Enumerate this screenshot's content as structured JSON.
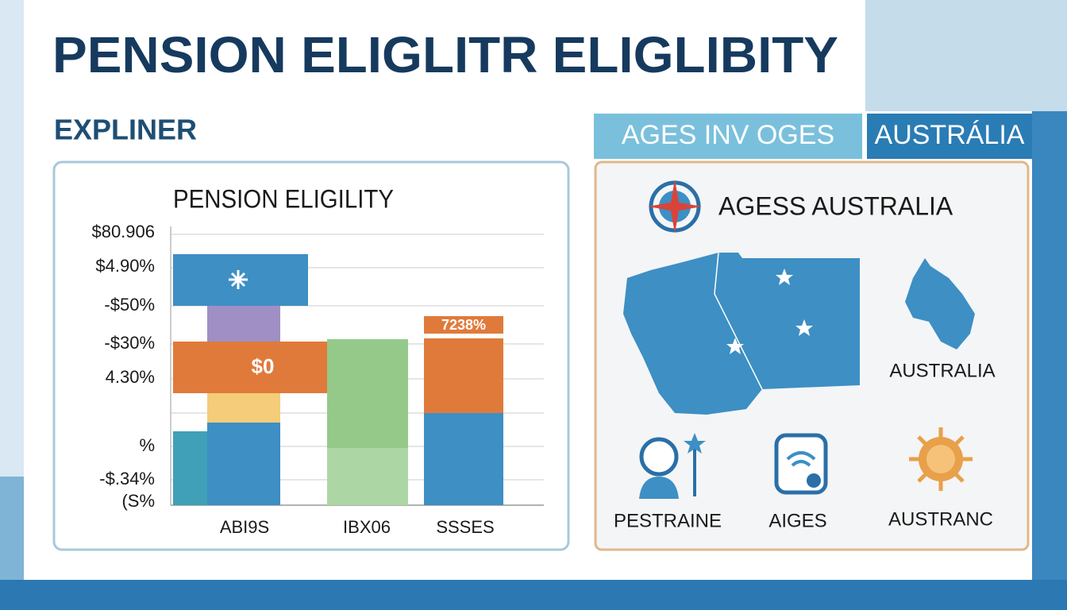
{
  "header": {
    "title": "PENSION ELIGLITR ELIGLIBITY",
    "subtitle": "EXPLINER"
  },
  "chart": {
    "title": "PENSION ELIGILITY",
    "axis_labels": [
      "$80.906",
      "$4.90%",
      "-$50%",
      "-$30%",
      "4.30%",
      "%",
      "-$.34%",
      "(S%"
    ],
    "bar_labels": [
      "$0",
      "7238%"
    ],
    "categories": [
      "ABI9S",
      "IBX06",
      "SSSES"
    ]
  },
  "tabs": [
    "AGES INV OGES",
    "AUSTRÁLIA"
  ],
  "panel": {
    "title": "AGESS AUSTRALIA",
    "map_label": "AUSTRALIA",
    "icons": [
      "PESTRAINE",
      "AIGES",
      "AUSTRANC"
    ]
  }
}
